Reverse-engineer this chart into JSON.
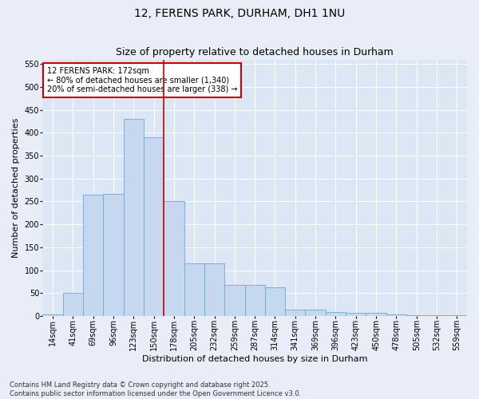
{
  "title": "12, FERENS PARK, DURHAM, DH1 1NU",
  "subtitle": "Size of property relative to detached houses in Durham",
  "xlabel": "Distribution of detached houses by size in Durham",
  "ylabel": "Number of detached properties",
  "categories": [
    "14sqm",
    "41sqm",
    "69sqm",
    "96sqm",
    "123sqm",
    "150sqm",
    "178sqm",
    "205sqm",
    "232sqm",
    "259sqm",
    "287sqm",
    "314sqm",
    "341sqm",
    "369sqm",
    "396sqm",
    "423sqm",
    "450sqm",
    "478sqm",
    "505sqm",
    "532sqm",
    "559sqm"
  ],
  "values": [
    3,
    51,
    265,
    267,
    430,
    390,
    250,
    115,
    115,
    68,
    68,
    62,
    14,
    14,
    8,
    6,
    6,
    4,
    1,
    1,
    1
  ],
  "bar_color": "#c5d8f0",
  "bar_edge_color": "#6aaad4",
  "vline_x_idx": 5,
  "vline_x_offset": 0.5,
  "vline_color": "#cc0000",
  "annotation_text": "12 FERENS PARK: 172sqm\n← 80% of detached houses are smaller (1,340)\n20% of semi-detached houses are larger (338) →",
  "annotation_box_color": "#ffffff",
  "annotation_box_edge": "#cc0000",
  "ylim": [
    0,
    560
  ],
  "yticks": [
    0,
    50,
    100,
    150,
    200,
    250,
    300,
    350,
    400,
    450,
    500,
    550
  ],
  "background_color": "#e8edf7",
  "plot_background": "#dce6f4",
  "grid_color": "#ffffff",
  "footer": "Contains HM Land Registry data © Crown copyright and database right 2025.\nContains public sector information licensed under the Open Government Licence v3.0.",
  "title_fontsize": 10,
  "subtitle_fontsize": 9,
  "axis_label_fontsize": 8,
  "tick_fontsize": 7,
  "annot_fontsize": 7,
  "footer_fontsize": 6
}
